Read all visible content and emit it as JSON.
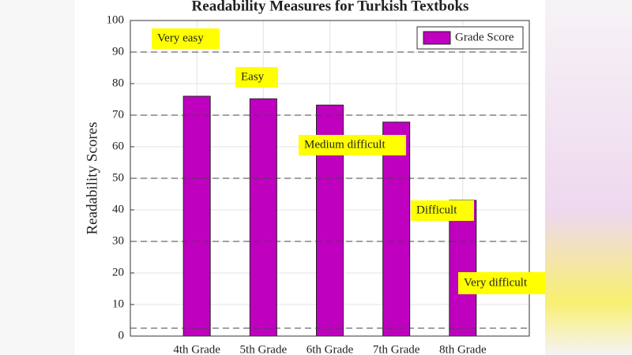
{
  "chart_data": {
    "type": "bar",
    "title": "Readability Measures for Turkish Textboks",
    "y_label": "Readability Scores",
    "categories": [
      "4th Grade",
      "5th Grade",
      "6th Grade",
      "7th Grade",
      "8th Grade"
    ],
    "series": [
      {
        "name": "Grade Score",
        "color": "#bf00bf",
        "values": [
          76,
          75.2,
          73.2,
          67.8,
          43
        ]
      }
    ],
    "ylim": [
      0,
      100
    ],
    "yticks": [
      0,
      10,
      20,
      30,
      40,
      50,
      60,
      70,
      80,
      90,
      100
    ],
    "grid": true,
    "legend": "northeast",
    "reference_lines": [
      90,
      70,
      50,
      30,
      2.5
    ],
    "annotations": [
      "Very easy",
      "Easy",
      "Medium difficult",
      "Difficult",
      "Very difficult"
    ]
  }
}
